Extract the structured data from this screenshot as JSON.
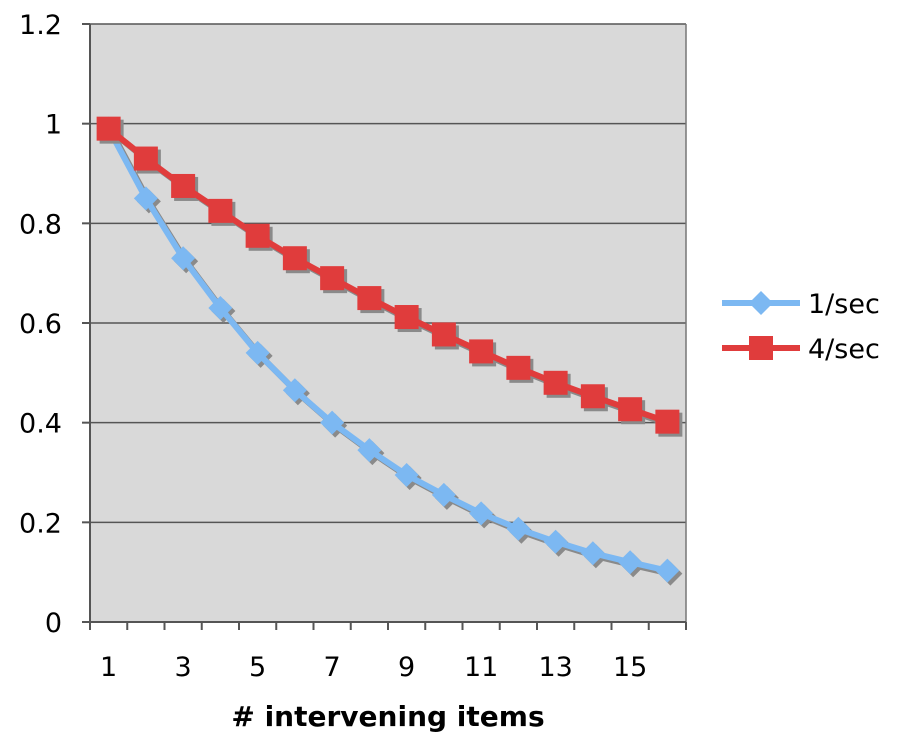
{
  "chart_data": {
    "type": "line",
    "title": "",
    "xlabel": "# intervening items",
    "ylabel": "",
    "x": [
      1,
      2,
      3,
      4,
      5,
      6,
      7,
      8,
      9,
      10,
      11,
      12,
      13,
      14,
      15,
      16
    ],
    "x_tick_labels": [
      "1",
      "3",
      "5",
      "7",
      "9",
      "11",
      "13",
      "15"
    ],
    "y_tick_labels": [
      "0",
      "0.2",
      "0.4",
      "0.6",
      "0.8",
      "1",
      "1.2"
    ],
    "ylim": [
      0,
      1.2
    ],
    "y_ticks": [
      0,
      0.2,
      0.4,
      0.6,
      0.8,
      1.0,
      1.2
    ],
    "grid": true,
    "legend_position": "right",
    "plot_background": "#d9d9d9",
    "series": [
      {
        "name": "1/sec",
        "marker": "diamond",
        "color": "#7cb8f2",
        "values": [
          0.99,
          0.85,
          0.73,
          0.63,
          0.54,
          0.465,
          0.4,
          0.345,
          0.295,
          0.255,
          0.218,
          0.187,
          0.161,
          0.138,
          0.12,
          0.103
        ]
      },
      {
        "name": "4/sec",
        "marker": "square",
        "color": "#e03c3c",
        "values": [
          0.99,
          0.93,
          0.875,
          0.825,
          0.775,
          0.73,
          0.69,
          0.65,
          0.612,
          0.577,
          0.543,
          0.51,
          0.48,
          0.453,
          0.427,
          0.402
        ]
      }
    ]
  }
}
